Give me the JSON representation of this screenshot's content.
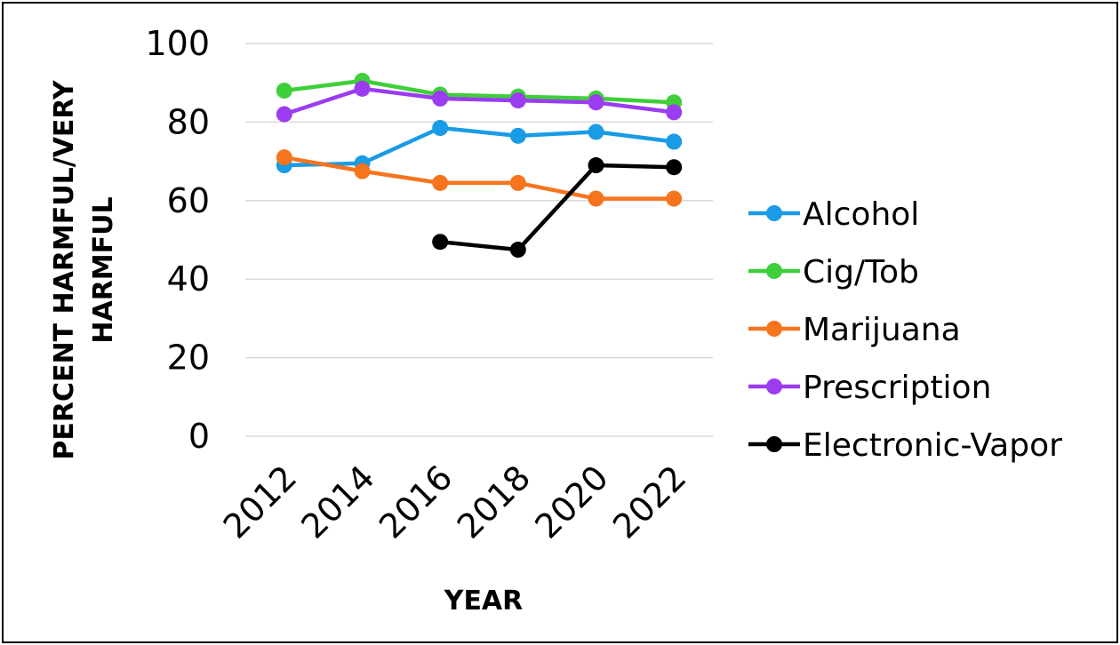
{
  "chart_data": {
    "type": "line",
    "title": "",
    "xlabel": "YEAR",
    "ylabel_lines": [
      "PERCENT HARMFUL/VERY",
      "HARMFUL"
    ],
    "categories": [
      "2012",
      "2014",
      "2016",
      "2018",
      "2020",
      "2022"
    ],
    "ylim": [
      0,
      100
    ],
    "yticks": [
      0,
      20,
      40,
      60,
      80,
      100
    ],
    "grid": true,
    "legend_position": "right",
    "series": [
      {
        "name": "Alcohol",
        "color": "#1a9be6",
        "values": [
          69,
          69.5,
          78.5,
          76.5,
          77.5,
          75
        ]
      },
      {
        "name": "Cig/Tob",
        "color": "#3ecf3a",
        "values": [
          88,
          90.5,
          87,
          86.5,
          86,
          85
        ]
      },
      {
        "name": "Marijuana",
        "color": "#f5741d",
        "values": [
          71,
          67.5,
          64.5,
          64.5,
          60.5,
          60.5
        ]
      },
      {
        "name": "Prescription",
        "color": "#9b3cf0",
        "values": [
          82,
          88.5,
          86,
          85.5,
          85,
          82.5
        ]
      },
      {
        "name": "Electronic-Vapor",
        "color": "#000000",
        "values": [
          null,
          null,
          49.5,
          47.5,
          69,
          68.5
        ]
      }
    ]
  }
}
